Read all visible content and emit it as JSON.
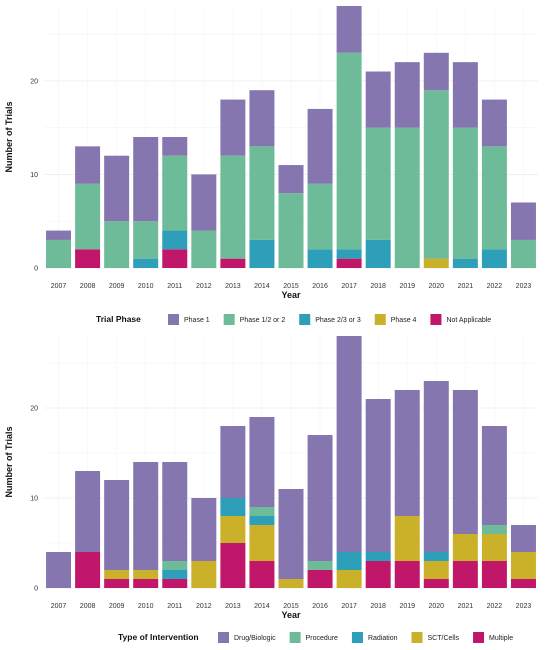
{
  "chart_data": [
    {
      "type": "bar",
      "stacked": true,
      "title": "",
      "xlabel": "Year",
      "ylabel": "Number of Trials",
      "ylim": [
        0,
        28
      ],
      "yticks": [
        0,
        10,
        20
      ],
      "grid": true,
      "legend_title": "Trial Phase",
      "legend_position": "bottom",
      "categories": [
        "2007",
        "2008",
        "2009",
        "2010",
        "2011",
        "2012",
        "2013",
        "2014",
        "2015",
        "2016",
        "2017",
        "2018",
        "2019",
        "2020",
        "2021",
        "2022",
        "2023"
      ],
      "series": [
        {
          "name": "Not Applicable",
          "color": "#c0176b",
          "values": [
            0,
            2,
            0,
            0,
            2,
            0,
            1,
            0,
            0,
            0,
            1,
            0,
            0,
            0,
            0,
            0,
            0
          ]
        },
        {
          "name": "Phase 4",
          "color": "#cbb12a",
          "values": [
            0,
            0,
            0,
            0,
            0,
            0,
            0,
            0,
            0,
            0,
            0,
            0,
            0,
            1,
            0,
            0,
            0
          ]
        },
        {
          "name": "Phase 2/3 or 3",
          "color": "#2e9fb8",
          "values": [
            0,
            0,
            0,
            1,
            2,
            0,
            0,
            3,
            0,
            2,
            1,
            3,
            0,
            0,
            1,
            2,
            0
          ]
        },
        {
          "name": "Phase 1/2 or 2",
          "color": "#6dbb99",
          "values": [
            3,
            7,
            5,
            4,
            8,
            4,
            11,
            10,
            8,
            7,
            21,
            12,
            15,
            18,
            14,
            11,
            3
          ]
        },
        {
          "name": "Phase 1",
          "color": "#8676b0",
          "values": [
            1,
            4,
            7,
            9,
            2,
            6,
            6,
            6,
            3,
            8,
            5,
            6,
            7,
            4,
            7,
            5,
            4
          ]
        }
      ],
      "legend_order": [
        "Phase 1",
        "Phase 1/2 or 2",
        "Phase 2/3 or 3",
        "Phase 4",
        "Not Applicable"
      ]
    },
    {
      "type": "bar",
      "stacked": true,
      "title": "",
      "xlabel": "Year",
      "ylabel": "Number of Trials",
      "ylim": [
        0,
        28
      ],
      "yticks": [
        0,
        10,
        20
      ],
      "grid": true,
      "legend_title": "Type of Intervention",
      "legend_position": "bottom",
      "categories": [
        "2007",
        "2008",
        "2009",
        "2010",
        "2011",
        "2012",
        "2013",
        "2014",
        "2015",
        "2016",
        "2017",
        "2018",
        "2019",
        "2020",
        "2021",
        "2022",
        "2023"
      ],
      "series": [
        {
          "name": "Multiple",
          "color": "#c0176b",
          "values": [
            0,
            4,
            1,
            1,
            1,
            0,
            5,
            3,
            0,
            2,
            0,
            3,
            3,
            1,
            3,
            3,
            1
          ]
        },
        {
          "name": "SCT/Cells",
          "color": "#cbb12a",
          "values": [
            0,
            0,
            1,
            1,
            0,
            3,
            3,
            4,
            1,
            0,
            2,
            0,
            5,
            2,
            3,
            3,
            3
          ]
        },
        {
          "name": "Radiation",
          "color": "#2e9fb8",
          "values": [
            0,
            0,
            0,
            0,
            1,
            0,
            2,
            1,
            0,
            0,
            2,
            1,
            0,
            1,
            0,
            0,
            0
          ]
        },
        {
          "name": "Procedure",
          "color": "#6dbb99",
          "values": [
            0,
            0,
            0,
            0,
            1,
            0,
            0,
            1,
            0,
            1,
            0,
            0,
            0,
            0,
            0,
            1,
            0
          ]
        },
        {
          "name": "Drug/Biologic",
          "color": "#8676b0",
          "values": [
            4,
            9,
            10,
            12,
            11,
            7,
            8,
            10,
            10,
            14,
            24,
            17,
            14,
            19,
            16,
            11,
            3
          ]
        }
      ],
      "legend_order": [
        "Drug/Biologic",
        "Procedure",
        "Radiation",
        "SCT/Cells",
        "Multiple"
      ]
    }
  ]
}
